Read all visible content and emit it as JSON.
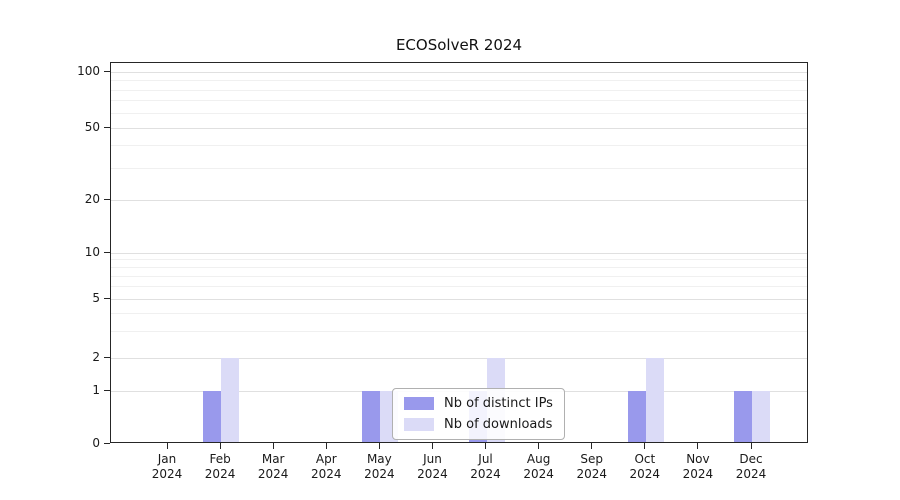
{
  "chart_data": {
    "type": "bar",
    "title": "ECOSolveR 2024",
    "categories": [
      "Jan",
      "Feb",
      "Mar",
      "Apr",
      "May",
      "Jun",
      "Jul",
      "Aug",
      "Sep",
      "Oct",
      "Nov",
      "Dec"
    ],
    "year": "2024",
    "series": [
      {
        "name": "Nb of distinct IPs",
        "color": "#9999ec",
        "values": [
          0,
          1,
          0,
          0,
          1,
          0,
          1,
          0,
          0,
          1,
          0,
          1
        ]
      },
      {
        "name": "Nb of downloads",
        "color": "#dbdbf7",
        "values": [
          0,
          2,
          0,
          0,
          1,
          0,
          2,
          0,
          0,
          2,
          0,
          1
        ]
      }
    ],
    "yscale": "symlog",
    "yticks": [
      0,
      1,
      2,
      5,
      10,
      20,
      50,
      100
    ],
    "minor_yticks": [
      3,
      4,
      6,
      7,
      8,
      9,
      30,
      40,
      60,
      70,
      80,
      90
    ],
    "ylim": [
      0,
      110
    ],
    "grid": true,
    "legend_position": "lower center",
    "bar_group": "side-by-side"
  }
}
